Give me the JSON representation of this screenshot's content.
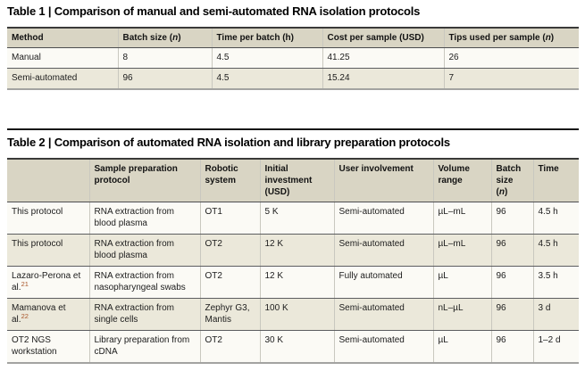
{
  "table1": {
    "title": "Table 1 | Comparison of manual and semi-automated RNA isolation protocols",
    "columns": [
      "Method",
      "Batch size (<i>n</i>)",
      "Time per batch (h)",
      "Cost per sample (USD)",
      "Tips used per sample (<i>n</i>)"
    ],
    "rows": [
      [
        "Manual",
        "8",
        "4.5",
        "41.25",
        "26"
      ],
      [
        "Semi-automated",
        "96",
        "4.5",
        "15.24",
        "7"
      ]
    ]
  },
  "table2": {
    "title": "Table 2 | Comparison of automated RNA isolation and library preparation protocols",
    "columns": [
      "",
      "Sample preparation protocol",
      "Robotic system",
      "Initial investment (USD)",
      "User involvement",
      "Volume range",
      "Batch size (<i>n</i>)",
      "Time"
    ],
    "rows": [
      [
        "This protocol",
        "RNA extraction from blood plasma",
        "OT1",
        "5 K",
        "Semi-automated",
        "µL–mL",
        "96",
        "4.5 h"
      ],
      [
        "This protocol",
        "RNA extraction from blood plasma",
        "OT2",
        "12 K",
        "Semi-automated",
        "µL–mL",
        "96",
        "4.5 h"
      ],
      [
        "Lazaro-Perona et al.<sup>21</sup>",
        "RNA extraction from nasopharyngeal swabs",
        "OT2",
        "12 K",
        "Fully automated",
        "µL",
        "96",
        "3.5 h"
      ],
      [
        "Mamanova et al.<sup>22</sup>",
        "RNA extraction from single cells",
        "Zephyr G3, Mantis",
        "100 K",
        "Semi-automated",
        "nL–µL",
        "96",
        "3 d"
      ],
      [
        "OT2 NGS workstation",
        "Library preparation from cDNA",
        "OT2",
        "30 K",
        "Semi-automated",
        "µL",
        "96",
        "1–2 d"
      ]
    ]
  },
  "colors": {
    "header_bg": "#d9d5c4",
    "row_odd_bg": "#fbfaf5",
    "row_even_bg": "#ebe8da",
    "top_rule": "#3a3a39",
    "bottom_rule": "#a3a3a1",
    "citation_ref": "#a9562a"
  }
}
